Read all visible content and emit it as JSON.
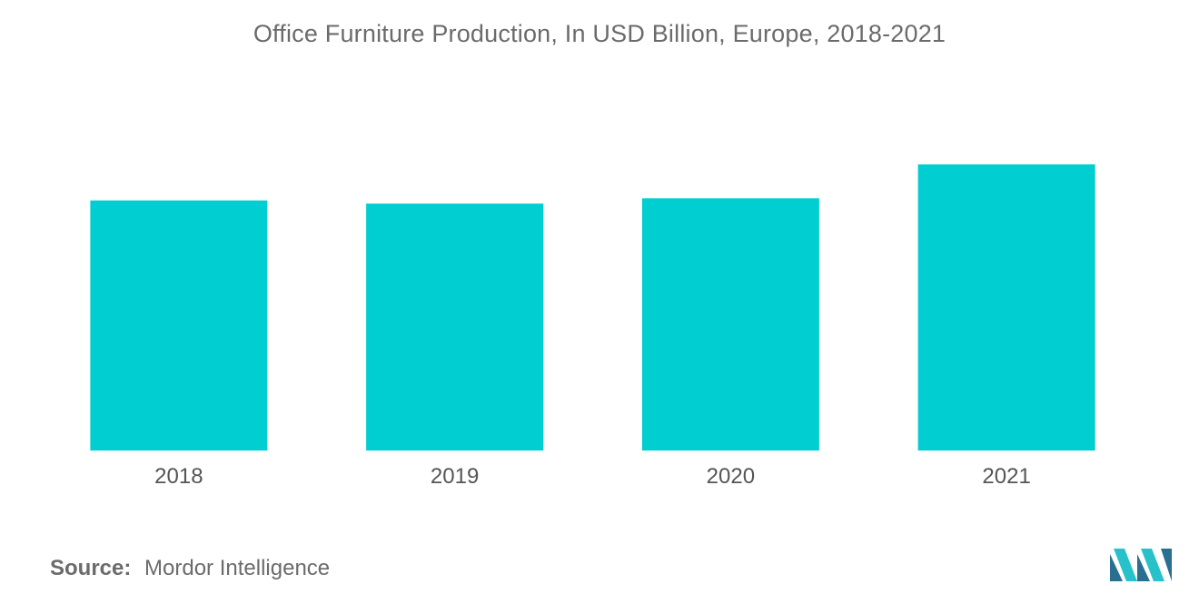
{
  "chart_data": {
    "type": "bar",
    "title": "Office Furniture Production, In USD Billion, Europe, 2018-2021",
    "xlabel": "",
    "ylabel": "",
    "categories": [
      "2018",
      "2019",
      "2020",
      "2021"
    ],
    "series": [
      {
        "values": [
          23.6,
          23.3,
          23.8,
          27.0
        ]
      }
    ],
    "ylim": [
      0,
      30
    ],
    "grid": false,
    "legend": "none",
    "data_labels": false
  },
  "colors": {
    "bar": "#00ced1",
    "logo_dark": "#2a6f8f",
    "logo_light": "#27c2c9"
  },
  "source": {
    "label": "Source:",
    "value": "Mordor Intelligence"
  },
  "logo": {
    "icon": "mordor-intelligence-logo-icon"
  }
}
